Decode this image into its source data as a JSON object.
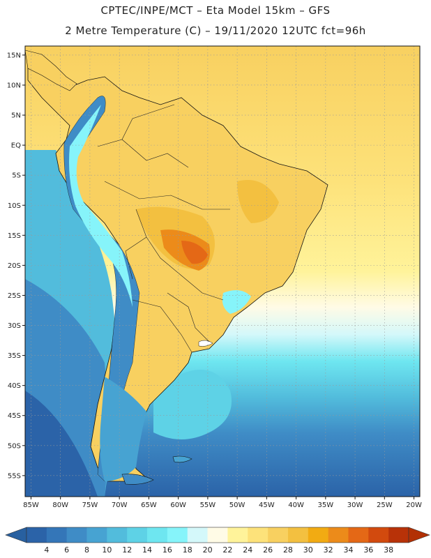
{
  "header": {
    "title_line1": "CPTEC/INPE/MCT  –  Eta Model 15km – GFS",
    "title_line2": "2 Metre Temperature (C) – 19/11/2020 12UTC fct=96h"
  },
  "axes": {
    "lat_labels": [
      "15N",
      "10N",
      "5N",
      "EQ",
      "5S",
      "10S",
      "15S",
      "20S",
      "25S",
      "30S",
      "35S",
      "40S",
      "45S",
      "50S",
      "55S"
    ],
    "lat_values": [
      15,
      10,
      5,
      0,
      -5,
      -10,
      -15,
      -20,
      -25,
      -30,
      -35,
      -40,
      -45,
      -50,
      -55
    ],
    "lon_labels": [
      "85W",
      "80W",
      "75W",
      "70W",
      "65W",
      "60W",
      "55W",
      "50W",
      "45W",
      "40W",
      "35W",
      "30W",
      "25W",
      "20W"
    ],
    "lon_values": [
      -85,
      -80,
      -75,
      -70,
      -65,
      -60,
      -55,
      -50,
      -45,
      -40,
      -35,
      -30,
      -25,
      -20
    ],
    "lon_range": [
      -86,
      -19
    ],
    "lat_range": [
      -58.5,
      16.5
    ],
    "grid": "dotted"
  },
  "colorbar": {
    "labels": [
      "4",
      "6",
      "8",
      "10",
      "12",
      "14",
      "16",
      "18",
      "20",
      "22",
      "24",
      "26",
      "28",
      "30",
      "32",
      "34",
      "36",
      "38"
    ],
    "colors": [
      "#2b63a8",
      "#3476b8",
      "#3f8cc6",
      "#47a3d2",
      "#52bcdc",
      "#5ed2e6",
      "#6ee6f0",
      "#86f4fa",
      "#d4f8fa",
      "#fffbe6",
      "#fff39a",
      "#fde27a",
      "#f8d060",
      "#f3c040",
      "#f2ab12",
      "#ec8b1a",
      "#e46816",
      "#d24a0e",
      "#b83208"
    ],
    "low_color": "#2860a0",
    "high_color": "#b23004"
  },
  "map": {
    "ocean_far_south": "#2b63a8",
    "ocean_south": "#3f8cc6",
    "ocean_mid": "#52bcdc",
    "ocean_cold_current": "#5ed2e6",
    "ocean_band": "#86f4fa",
    "ocean_warm_north": "#f8d060",
    "land_warm": "#f3c040",
    "land_hot": "#ec8b1a",
    "andes_color": "#3f8cc6",
    "patagonia_color": "#47a3d2",
    "outline_color": "#111111"
  }
}
